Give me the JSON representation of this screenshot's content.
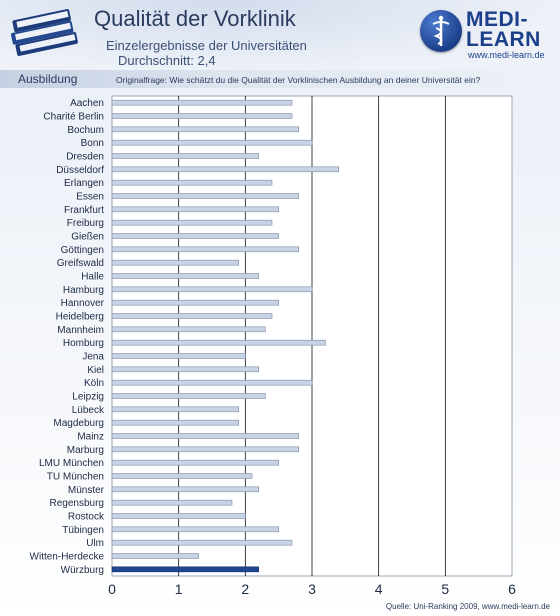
{
  "header": {
    "title": "Qualität der Vorklinik",
    "subtitle": "Einzelergebnisse der Universitäten",
    "average_label": "Durchschnitt:",
    "average_value": "2,4"
  },
  "logo": {
    "line1": "MEDI-",
    "line2": "LEARN",
    "url": "www.medi-learn.de",
    "brand_color": "#1c3f8a"
  },
  "section": {
    "label": "Ausbildung",
    "question": "Originalfrage: Wie schätzt du die Qualität der Vorklinischen Ausbildung an deiner Universität ein?"
  },
  "chart_data": {
    "type": "bar",
    "orientation": "horizontal",
    "title": "",
    "xlabel": "",
    "ylabel": "",
    "xlim": [
      0,
      6
    ],
    "x_ticks": [
      0,
      1,
      2,
      3,
      4,
      5,
      6
    ],
    "grid": true,
    "legend": "none",
    "categories": [
      "Aachen",
      "Charité Berlin",
      "Bochum",
      "Bonn",
      "Dresden",
      "Düsseldorf",
      "Erlangen",
      "Essen",
      "Frankfurt",
      "Freiburg",
      "Gießen",
      "Göttingen",
      "Greifswald",
      "Halle",
      "Hamburg",
      "Hannover",
      "Heidelberg",
      "Mannheim",
      "Homburg",
      "Jena",
      "Kiel",
      "Köln",
      "Leipzig",
      "Lübeck",
      "Magdeburg",
      "Mainz",
      "Marburg",
      "LMU München",
      "TU München",
      "Münster",
      "Regensburg",
      "Rostock",
      "Tübingen",
      "Ulm",
      "Witten-Herdecke",
      "Würzburg"
    ],
    "values": [
      2.7,
      2.7,
      2.8,
      3.0,
      2.2,
      3.4,
      2.4,
      2.8,
      2.5,
      2.4,
      2.5,
      2.8,
      1.9,
      2.2,
      3.0,
      2.5,
      2.4,
      2.3,
      3.2,
      2.0,
      2.2,
      3.0,
      2.3,
      1.9,
      1.9,
      2.8,
      2.8,
      2.5,
      2.1,
      2.2,
      1.8,
      2.0,
      2.5,
      2.7,
      1.3,
      2.2
    ],
    "highlight": "Würzburg",
    "bar_color": "#c9d3e6",
    "highlight_color": "#1f4690"
  },
  "footer": {
    "source": "Quelle: Uni-Ranking 2009, www.medi-learn.de"
  }
}
